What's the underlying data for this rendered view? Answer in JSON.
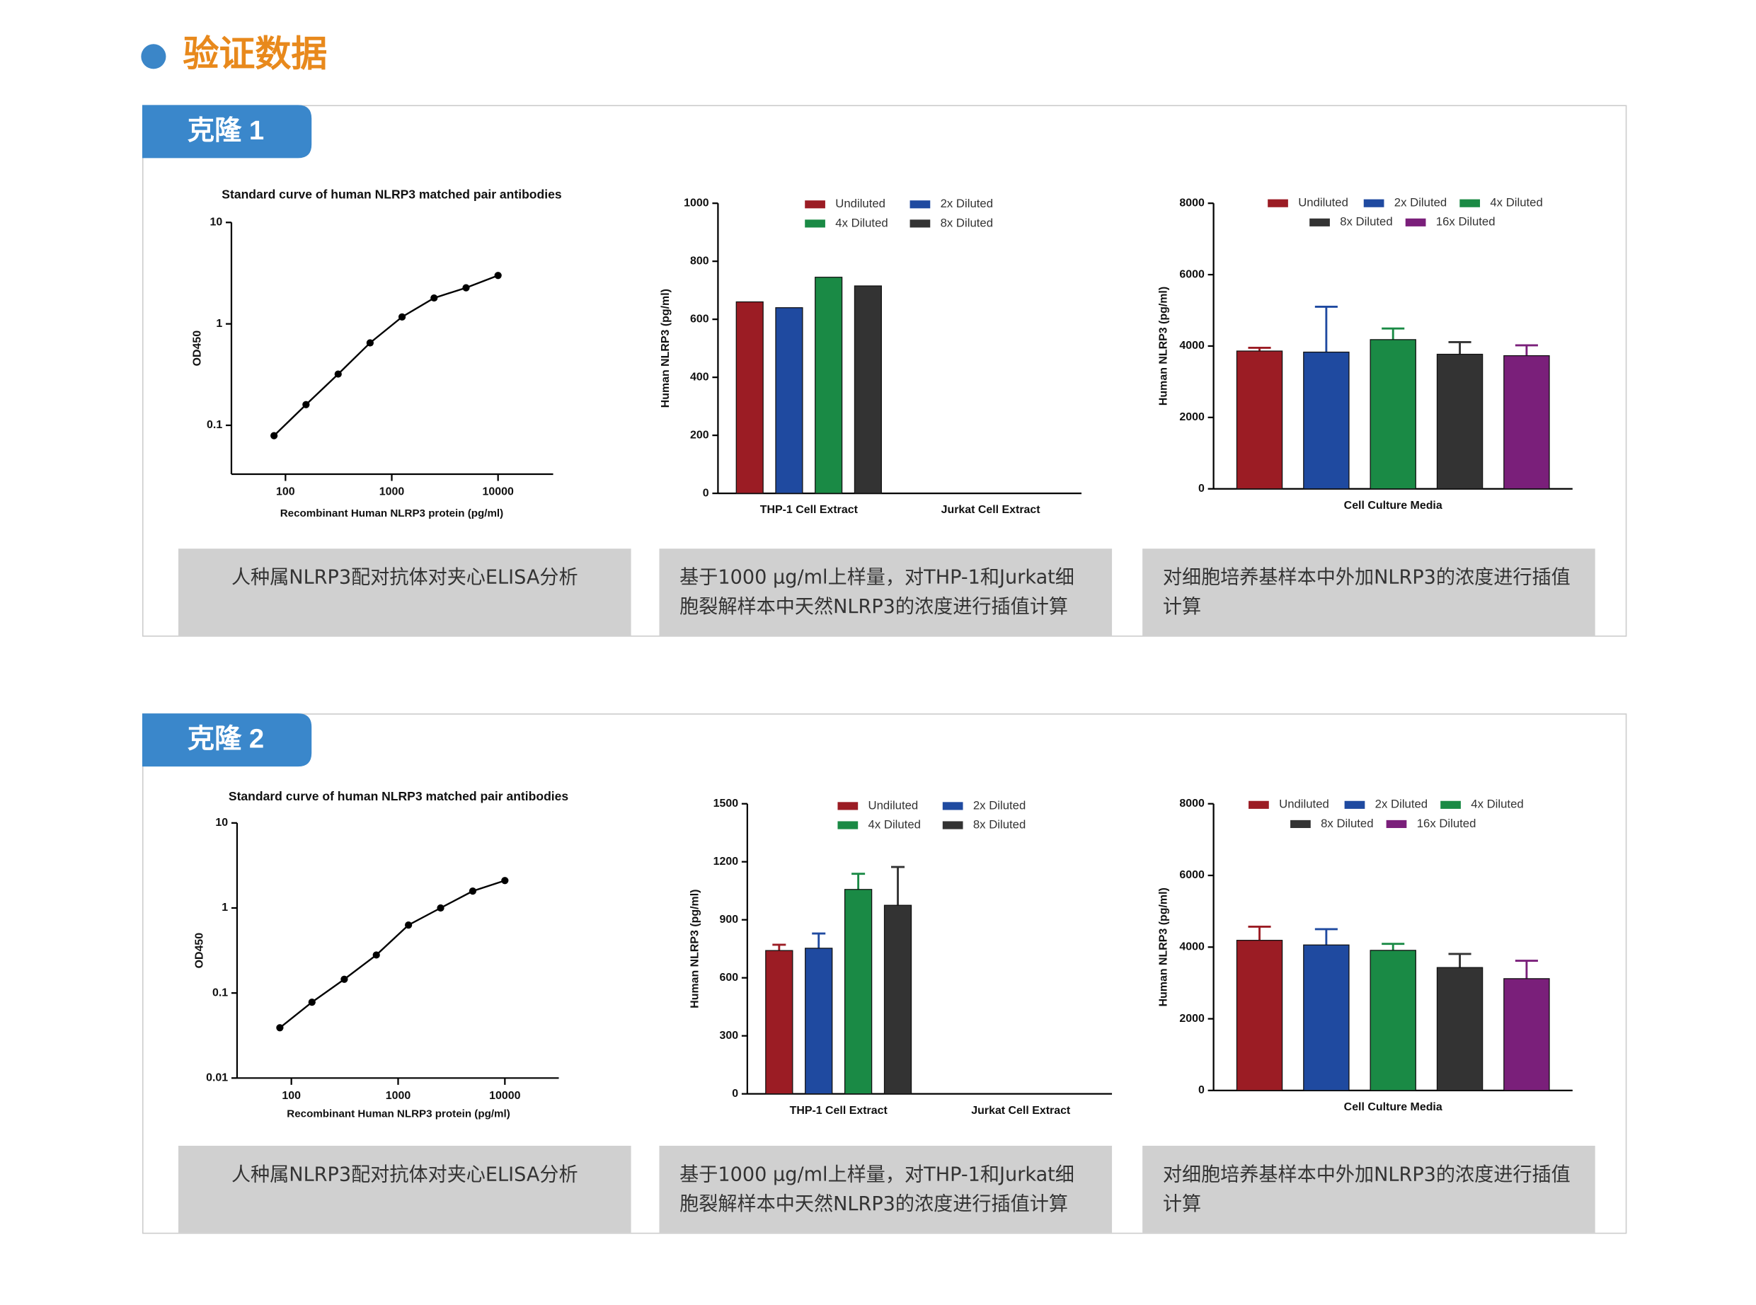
{
  "header": {
    "title": "验证数据"
  },
  "panels": [
    {
      "label": "克隆 1",
      "captions": [
        "人种属NLRP3配对抗体对夹心ELISA分析",
        "基于1000 μg/ml上样量，对THP-1和Jurkat细胞裂解样本中天然NLRP3的浓度进行插值计算",
        "对细胞培养基样本中外加NLRP3的浓度进行插值计算"
      ]
    },
    {
      "label": "克隆 2",
      "captions": [
        "人种属NLRP3配对抗体对夹心ELISA分析",
        "基于1000 μg/ml上样量，对THP-1和Jurkat细胞裂解样本中天然NLRP3的浓度进行插值计算",
        "对细胞培养基样本中外加NLRP3的浓度进行插值计算"
      ]
    }
  ],
  "chart_data": [
    {
      "type": "line",
      "title": "Standard curve of human NLRP3 matched pair antibodies",
      "xlabel": "Recombinant Human NLRP3 protein (pg/ml)",
      "ylabel": "OD450",
      "xscale": "log",
      "yscale": "log",
      "color": "#000000",
      "x": [
        78,
        156,
        313,
        625,
        1250,
        2500,
        5000,
        10000
      ],
      "values": [
        0.079,
        0.16,
        0.32,
        0.65,
        1.17,
        1.8,
        2.27,
        3.0
      ],
      "xlim": [
        31,
        33000
      ],
      "xticks": [
        100,
        1000,
        10000
      ],
      "ylim": [
        0.033,
        10
      ],
      "yticks": [
        0.1,
        1,
        10
      ]
    },
    {
      "type": "bar",
      "ylabel": "Human NLRP3 (pg/ml)",
      "categories": [
        "THP-1 Cell Extract",
        "Jurkat Cell Extract"
      ],
      "series": [
        {
          "name": "Undiluted",
          "color": "#9b1c24",
          "values": [
            660,
            null
          ]
        },
        {
          "name": "2x Diluted",
          "color": "#1f4aa0",
          "values": [
            640,
            null
          ]
        },
        {
          "name": "4x Diluted",
          "color": "#1a8a45",
          "values": [
            745,
            null
          ]
        },
        {
          "name": "8x Diluted",
          "color": "#333333",
          "values": [
            715,
            null
          ]
        }
      ],
      "ylim": [
        0,
        1000
      ],
      "yticks": [
        0,
        200,
        400,
        600,
        800,
        1000
      ]
    },
    {
      "type": "bar",
      "ylabel": "Human NLRP3 (pg/ml)",
      "categories": [
        "Cell  Culture Media"
      ],
      "series": [
        {
          "name": "Undiluted",
          "color": "#9b1c24",
          "values": [
            3860
          ],
          "errors": [
            90
          ]
        },
        {
          "name": "2x Diluted",
          "color": "#1f4aa0",
          "values": [
            3830
          ],
          "errors": [
            1270
          ]
        },
        {
          "name": "4x Diluted",
          "color": "#1a8a45",
          "values": [
            4180
          ],
          "errors": [
            310
          ]
        },
        {
          "name": "8x Diluted",
          "color": "#333333",
          "values": [
            3770
          ],
          "errors": [
            340
          ]
        },
        {
          "name": "16x Diluted",
          "color": "#7a1f7a",
          "values": [
            3730
          ],
          "errors": [
            290
          ]
        }
      ],
      "ylim": [
        0,
        8000
      ],
      "yticks": [
        0,
        2000,
        4000,
        6000,
        8000
      ]
    },
    {
      "type": "line",
      "title": "Standard curve of human NLRP3 matched pair antibodies",
      "xlabel": "Recombinant Human NLRP3 protein (pg/ml)",
      "ylabel": "OD450",
      "xscale": "log",
      "yscale": "log",
      "color": "#000000",
      "x": [
        78,
        156,
        313,
        625,
        1250,
        2500,
        5000,
        10000
      ],
      "values": [
        0.039,
        0.078,
        0.145,
        0.28,
        0.63,
        1.0,
        1.58,
        2.1
      ],
      "xlim": [
        31,
        32000
      ],
      "xticks": [
        100,
        1000,
        10000
      ],
      "ylim": [
        0.01,
        10
      ],
      "yticks": [
        0.01,
        0.1,
        1,
        10
      ]
    },
    {
      "type": "bar",
      "ylabel": "Human NLRP3 (pg/ml)",
      "categories": [
        "THP-1 Cell Extract",
        "Jurkat Cell Extract"
      ],
      "series": [
        {
          "name": "Undiluted",
          "color": "#9b1c24",
          "values": [
            741,
            null
          ],
          "errors": [
            30,
            null
          ]
        },
        {
          "name": "2x Diluted",
          "color": "#1f4aa0",
          "values": [
            753,
            null
          ],
          "errors": [
            76,
            null
          ]
        },
        {
          "name": "4x Diluted",
          "color": "#1a8a45",
          "values": [
            1057,
            null
          ],
          "errors": [
            81,
            null
          ]
        },
        {
          "name": "8x Diluted",
          "color": "#333333",
          "values": [
            975,
            null
          ],
          "errors": [
            198,
            null
          ]
        }
      ],
      "ylim": [
        0,
        1500
      ],
      "yticks": [
        0,
        300,
        600,
        900,
        1200,
        1500
      ]
    },
    {
      "type": "bar",
      "ylabel": "Human NLRP3 (pg/ml)",
      "categories": [
        "Cell  Culture Media"
      ],
      "series": [
        {
          "name": "Undiluted",
          "color": "#9b1c24",
          "values": [
            4190
          ],
          "errors": [
            380
          ]
        },
        {
          "name": "2x Diluted",
          "color": "#1f4aa0",
          "values": [
            4060
          ],
          "errors": [
            440
          ]
        },
        {
          "name": "4x Diluted",
          "color": "#1a8a45",
          "values": [
            3910
          ],
          "errors": [
            180
          ]
        },
        {
          "name": "8x Diluted",
          "color": "#333333",
          "values": [
            3430
          ],
          "errors": [
            380
          ]
        },
        {
          "name": "16x Diluted",
          "color": "#7a1f7a",
          "values": [
            3120
          ],
          "errors": [
            500
          ]
        }
      ],
      "ylim": [
        0,
        8000
      ],
      "yticks": [
        0,
        2000,
        4000,
        6000,
        8000
      ]
    }
  ]
}
